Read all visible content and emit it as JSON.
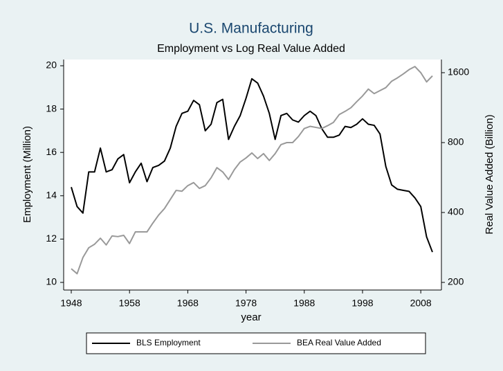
{
  "chart_data": {
    "type": "line",
    "title": "U.S. Manufacturing",
    "subtitle": "Employment vs Log Real Value Added",
    "x_label": "year",
    "y_label": "Employment (Million)",
    "y2_label": "Real Value Added (Billion)",
    "x": [
      1948,
      1949,
      1950,
      1951,
      1952,
      1953,
      1954,
      1955,
      1956,
      1957,
      1958,
      1959,
      1960,
      1961,
      1962,
      1963,
      1964,
      1965,
      1966,
      1967,
      1968,
      1969,
      1970,
      1971,
      1972,
      1973,
      1974,
      1975,
      1976,
      1977,
      1978,
      1979,
      1980,
      1981,
      1982,
      1983,
      1984,
      1985,
      1986,
      1987,
      1988,
      1989,
      1990,
      1991,
      1992,
      1993,
      1994,
      1995,
      1996,
      1997,
      1998,
      1999,
      2000,
      2001,
      2002,
      2003,
      2004,
      2005,
      2006,
      2007,
      2008,
      2009,
      2010
    ],
    "series": [
      {
        "name": "BLS Employment",
        "color": "#000000",
        "values": [
          14.4,
          13.5,
          13.2,
          15.1,
          15.1,
          16.2,
          15.1,
          15.2,
          15.7,
          15.9,
          14.6,
          15.1,
          15.5,
          14.65,
          15.3,
          15.4,
          15.6,
          16.2,
          17.2,
          17.8,
          17.9,
          18.4,
          18.2,
          17.0,
          17.3,
          18.3,
          18.45,
          16.6,
          17.2,
          17.7,
          18.5,
          19.4,
          19.2,
          18.6,
          17.8,
          16.6,
          17.7,
          17.8,
          17.5,
          17.4,
          17.7,
          17.9,
          17.7,
          17.1,
          16.7,
          16.7,
          16.8,
          17.2,
          17.15,
          17.3,
          17.55,
          17.3,
          17.25,
          16.85,
          15.35,
          14.5,
          14.3,
          14.25,
          14.2,
          13.9,
          13.5,
          12.1,
          11.4
        ]
      },
      {
        "name": "BEA Real Value Added",
        "color": "#999999",
        "axis": "y2",
        "values": [
          229,
          218,
          256,
          282,
          292,
          310,
          290,
          317,
          315,
          319,
          294,
          330,
          330,
          330,
          360,
          390,
          416,
          455,
          498,
          494,
          522,
          538,
          508,
          522,
          564,
          624,
          598,
          555,
          612,
          660,
          687,
          722,
          683,
          717,
          670,
          717,
          784,
          800,
          800,
          850,
          920,
          940,
          930,
          920,
          946,
          977,
          1056,
          1090,
          1130,
          1200,
          1270,
          1360,
          1300,
          1340,
          1380,
          1470,
          1520,
          1580,
          1650,
          1700,
          1600,
          1460,
          1550
        ]
      }
    ],
    "xlim": [
      1948,
      2010
    ],
    "xticks": [
      1948,
      1958,
      1968,
      1978,
      1988,
      1998,
      2008
    ],
    "ylim": [
      10,
      20
    ],
    "yticks": [
      10,
      12,
      14,
      16,
      18,
      20
    ],
    "y2lim": [
      200,
      1600
    ],
    "y2ticks": [
      200,
      400,
      800,
      1600
    ],
    "y2log": true,
    "grid": false
  }
}
